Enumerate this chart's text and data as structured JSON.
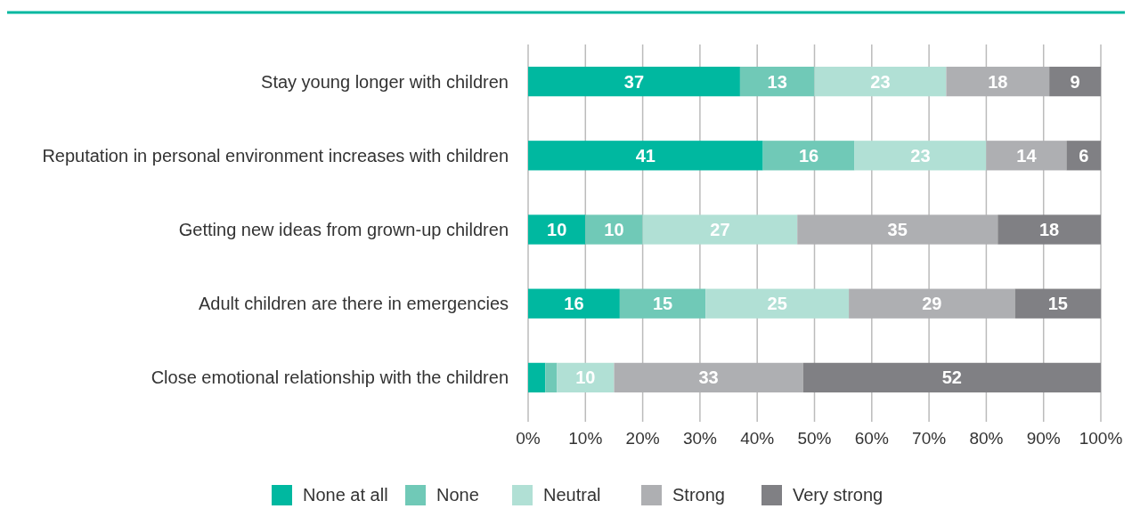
{
  "chart_data": {
    "type": "bar",
    "orientation": "horizontal",
    "stacked": true,
    "categories": [
      "Stay young longer with children",
      "Reputation in personal environment increases with children",
      "Getting new ideas from grown-up children",
      "Adult children are there in emergencies",
      "Close emotional relationship with the children"
    ],
    "series": [
      {
        "name": "None at all",
        "color": "#00b8a0",
        "values": [
          37,
          41,
          10,
          16,
          3
        ],
        "value_labels": [
          "37",
          "41",
          "10",
          "16",
          null
        ]
      },
      {
        "name": "None",
        "color": "#70c9b7",
        "values": [
          13,
          16,
          10,
          15,
          2
        ],
        "value_labels": [
          "13",
          "16",
          "10",
          "15",
          null
        ]
      },
      {
        "name": "Neutral",
        "color": "#b1e0d5",
        "values": [
          23,
          23,
          27,
          25,
          10
        ],
        "value_labels": [
          "23",
          "23",
          "27",
          "25",
          "10"
        ]
      },
      {
        "name": "Strong",
        "color": "#aeafb2",
        "values": [
          18,
          14,
          35,
          29,
          33
        ],
        "value_labels": [
          "18",
          "14",
          "35",
          "29",
          "33"
        ]
      },
      {
        "name": "Very strong",
        "color": "#808084",
        "values": [
          9,
          6,
          18,
          15,
          52
        ],
        "value_labels": [
          "9",
          "6",
          "18",
          "15",
          "52"
        ]
      }
    ],
    "xlim": [
      0,
      100
    ],
    "xticks": [
      {
        "value": 0,
        "label": "0%"
      },
      {
        "value": 10,
        "label": "10%"
      },
      {
        "value": 20,
        "label": "20%"
      },
      {
        "value": 30,
        "label": "30%"
      },
      {
        "value": 40,
        "label": "40%"
      },
      {
        "value": 50,
        "label": "50%"
      },
      {
        "value": 60,
        "label": "60%"
      },
      {
        "value": 70,
        "label": "70%"
      },
      {
        "value": 80,
        "label": "80%"
      },
      {
        "value": 90,
        "label": "90%"
      },
      {
        "value": 100,
        "label": "100%"
      }
    ],
    "grid": "x",
    "legend": "bottom"
  }
}
